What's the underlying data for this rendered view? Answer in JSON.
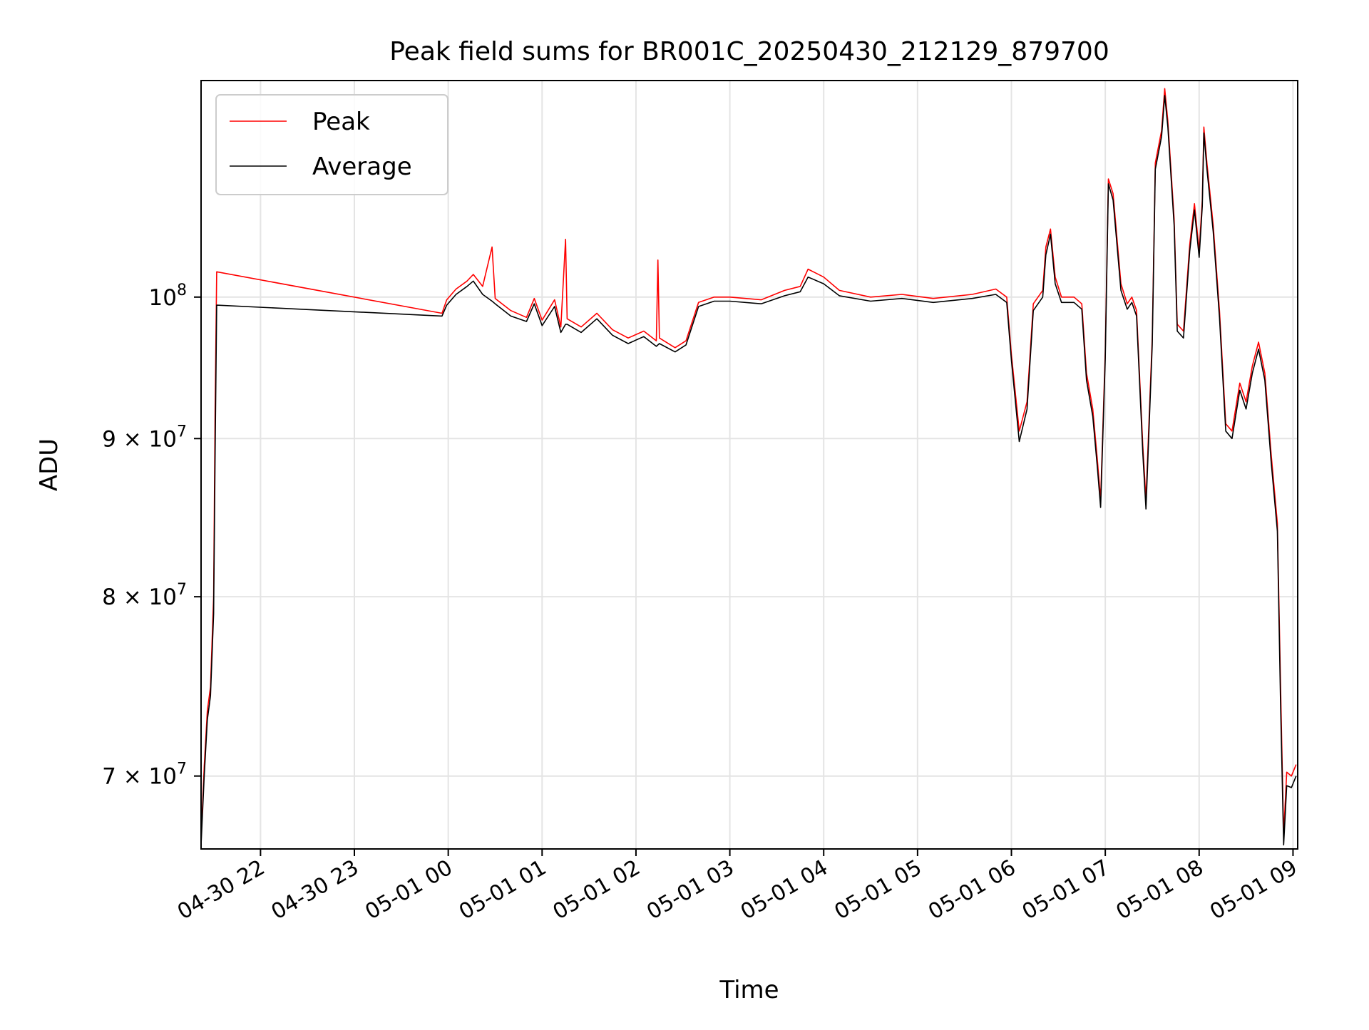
{
  "chart_data": {
    "type": "line",
    "title": "Peak field sums for BR001C_20250430_212129_879700",
    "xlabel": "Time",
    "ylabel": "ADU",
    "yscale": "log",
    "grid": true,
    "legend_placement": "top-left",
    "x_range": [
      "2025-04-30 21:22",
      "2025-05-01 09:03"
    ],
    "y_range": [
      66300000,
      117500000
    ],
    "x_ticks": [
      {
        "value": "2025-04-30 22:00",
        "label": "04-30 22"
      },
      {
        "value": "2025-04-30 23:00",
        "label": "04-30 23"
      },
      {
        "value": "2025-05-01 00:00",
        "label": "05-01 00"
      },
      {
        "value": "2025-05-01 01:00",
        "label": "05-01 01"
      },
      {
        "value": "2025-05-01 02:00",
        "label": "05-01 02"
      },
      {
        "value": "2025-05-01 03:00",
        "label": "05-01 03"
      },
      {
        "value": "2025-05-01 04:00",
        "label": "05-01 04"
      },
      {
        "value": "2025-05-01 05:00",
        "label": "05-01 05"
      },
      {
        "value": "2025-05-01 06:00",
        "label": "05-01 06"
      },
      {
        "value": "2025-05-01 07:00",
        "label": "05-01 07"
      },
      {
        "value": "2025-05-01 08:00",
        "label": "05-01 08"
      },
      {
        "value": "2025-05-01 09:00",
        "label": "05-01 09"
      }
    ],
    "y_ticks": [
      {
        "value": 70000000,
        "mant": "7",
        "exp": "7"
      },
      {
        "value": 80000000,
        "mant": "8",
        "exp": "7"
      },
      {
        "value": 90000000,
        "mant": "9",
        "exp": "7"
      },
      {
        "value": 100000000,
        "mant": "",
        "exp": "8"
      }
    ],
    "series": [
      {
        "name": "Peak",
        "color": "#ff0000",
        "points": [
          [
            "2025-04-30 21:22",
            66800000
          ],
          [
            "2025-04-30 21:24",
            70500000
          ],
          [
            "2025-04-30 21:26",
            73500000
          ],
          [
            "2025-04-30 21:28",
            74800000
          ],
          [
            "2025-04-30 21:30",
            80000000
          ],
          [
            "2025-04-30 21:31",
            92000000
          ],
          [
            "2025-04-30 21:32",
            101900000
          ],
          [
            "2025-04-30 23:56",
            98800000
          ],
          [
            "2025-04-30 23:59",
            99800000
          ],
          [
            "2025-05-01 00:05",
            100600000
          ],
          [
            "2025-05-01 00:12",
            101200000
          ],
          [
            "2025-05-01 00:16",
            101700000
          ],
          [
            "2025-05-01 00:22",
            100800000
          ],
          [
            "2025-05-01 00:28",
            103800000
          ],
          [
            "2025-05-01 00:30",
            99900000
          ],
          [
            "2025-05-01 00:40",
            99000000
          ],
          [
            "2025-05-01 00:50",
            98500000
          ],
          [
            "2025-05-01 00:55",
            99900000
          ],
          [
            "2025-05-01 01:00",
            98300000
          ],
          [
            "2025-05-01 01:08",
            99800000
          ],
          [
            "2025-05-01 01:12",
            97800000
          ],
          [
            "2025-05-01 01:15",
            104400000
          ],
          [
            "2025-05-01 01:16",
            98400000
          ],
          [
            "2025-05-01 01:25",
            97800000
          ],
          [
            "2025-05-01 01:35",
            98800000
          ],
          [
            "2025-05-01 01:45",
            97600000
          ],
          [
            "2025-05-01 01:55",
            97000000
          ],
          [
            "2025-05-01 02:05",
            97500000
          ],
          [
            "2025-05-01 02:13",
            96800000
          ],
          [
            "2025-05-01 02:14",
            102800000
          ],
          [
            "2025-05-01 02:15",
            97000000
          ],
          [
            "2025-05-01 02:25",
            96300000
          ],
          [
            "2025-05-01 02:32",
            96800000
          ],
          [
            "2025-05-01 02:40",
            99600000
          ],
          [
            "2025-05-01 02:50",
            100000000
          ],
          [
            "2025-05-01 03:00",
            100000000
          ],
          [
            "2025-05-01 03:20",
            99800000
          ],
          [
            "2025-05-01 03:35",
            100500000
          ],
          [
            "2025-05-01 03:45",
            100800000
          ],
          [
            "2025-05-01 03:50",
            102100000
          ],
          [
            "2025-05-01 04:00",
            101500000
          ],
          [
            "2025-05-01 04:10",
            100500000
          ],
          [
            "2025-05-01 04:30",
            100000000
          ],
          [
            "2025-05-01 04:50",
            100200000
          ],
          [
            "2025-05-01 05:10",
            99900000
          ],
          [
            "2025-05-01 05:35",
            100200000
          ],
          [
            "2025-05-01 05:50",
            100600000
          ],
          [
            "2025-05-01 05:57",
            100000000
          ],
          [
            "2025-05-01 06:00",
            95800000
          ],
          [
            "2025-05-01 06:05",
            90500000
          ],
          [
            "2025-05-01 06:10",
            92500000
          ],
          [
            "2025-05-01 06:14",
            99500000
          ],
          [
            "2025-05-01 06:20",
            100500000
          ],
          [
            "2025-05-01 06:22",
            103800000
          ],
          [
            "2025-05-01 06:25",
            105200000
          ],
          [
            "2025-05-01 06:28",
            101500000
          ],
          [
            "2025-05-01 06:32",
            100000000
          ],
          [
            "2025-05-01 06:40",
            100000000
          ],
          [
            "2025-05-01 06:45",
            99500000
          ],
          [
            "2025-05-01 06:48",
            94500000
          ],
          [
            "2025-05-01 06:52",
            92000000
          ],
          [
            "2025-05-01 06:55",
            88500000
          ],
          [
            "2025-05-01 06:57",
            86000000
          ],
          [
            "2025-05-01 07:00",
            96000000
          ],
          [
            "2025-05-01 07:02",
            109200000
          ],
          [
            "2025-05-01 07:05",
            108000000
          ],
          [
            "2025-05-01 07:10",
            101000000
          ],
          [
            "2025-05-01 07:14",
            99500000
          ],
          [
            "2025-05-01 07:17",
            100000000
          ],
          [
            "2025-05-01 07:20",
            99000000
          ],
          [
            "2025-05-01 07:24",
            89500000
          ],
          [
            "2025-05-01 07:26",
            86000000
          ],
          [
            "2025-05-01 07:30",
            97000000
          ],
          [
            "2025-05-01 07:32",
            110500000
          ],
          [
            "2025-05-01 07:36",
            113200000
          ],
          [
            "2025-05-01 07:38",
            116800000
          ],
          [
            "2025-05-01 07:40",
            114000000
          ],
          [
            "2025-05-01 07:44",
            106000000
          ],
          [
            "2025-05-01 07:46",
            98000000
          ],
          [
            "2025-05-01 07:50",
            97500000
          ],
          [
            "2025-05-01 07:54",
            104000000
          ],
          [
            "2025-05-01 07:57",
            107200000
          ],
          [
            "2025-05-01 08:00",
            103500000
          ],
          [
            "2025-05-01 08:02",
            107500000
          ],
          [
            "2025-05-01 08:03",
            113500000
          ],
          [
            "2025-05-01 08:05",
            110500000
          ],
          [
            "2025-05-01 08:09",
            105500000
          ],
          [
            "2025-05-01 08:13",
            99000000
          ],
          [
            "2025-05-01 08:17",
            91000000
          ],
          [
            "2025-05-01 08:21",
            90500000
          ],
          [
            "2025-05-01 08:26",
            93800000
          ],
          [
            "2025-05-01 08:30",
            92500000
          ],
          [
            "2025-05-01 08:34",
            95000000
          ],
          [
            "2025-05-01 08:38",
            96700000
          ],
          [
            "2025-05-01 08:42",
            94500000
          ],
          [
            "2025-05-01 08:46",
            89000000
          ],
          [
            "2025-05-01 08:50",
            84500000
          ],
          [
            "2025-05-01 08:52",
            75000000
          ],
          [
            "2025-05-01 08:54",
            67000000
          ],
          [
            "2025-05-01 08:56",
            70200000
          ],
          [
            "2025-05-01 08:59",
            70000000
          ],
          [
            "2025-05-01 09:02",
            70600000
          ]
        ]
      },
      {
        "name": "Average",
        "color": "#000000",
        "points": [
          [
            "2025-04-30 21:22",
            66500000
          ],
          [
            "2025-04-30 21:24",
            70000000
          ],
          [
            "2025-04-30 21:26",
            73000000
          ],
          [
            "2025-04-30 21:28",
            74300000
          ],
          [
            "2025-04-30 21:30",
            79000000
          ],
          [
            "2025-04-30 21:31",
            89000000
          ],
          [
            "2025-04-30 21:32",
            99400000
          ],
          [
            "2025-04-30 23:56",
            98600000
          ],
          [
            "2025-04-30 23:59",
            99400000
          ],
          [
            "2025-05-01 00:05",
            100200000
          ],
          [
            "2025-05-01 00:12",
            100800000
          ],
          [
            "2025-05-01 00:16",
            101200000
          ],
          [
            "2025-05-01 00:22",
            100200000
          ],
          [
            "2025-05-01 00:28",
            99700000
          ],
          [
            "2025-05-01 00:30",
            99500000
          ],
          [
            "2025-05-01 00:40",
            98600000
          ],
          [
            "2025-05-01 00:50",
            98200000
          ],
          [
            "2025-05-01 00:55",
            99500000
          ],
          [
            "2025-05-01 01:00",
            97900000
          ],
          [
            "2025-05-01 01:08",
            99300000
          ],
          [
            "2025-05-01 01:12",
            97400000
          ],
          [
            "2025-05-01 01:15",
            98000000
          ],
          [
            "2025-05-01 01:16",
            98000000
          ],
          [
            "2025-05-01 01:25",
            97400000
          ],
          [
            "2025-05-01 01:35",
            98400000
          ],
          [
            "2025-05-01 01:45",
            97200000
          ],
          [
            "2025-05-01 01:55",
            96600000
          ],
          [
            "2025-05-01 02:05",
            97100000
          ],
          [
            "2025-05-01 02:13",
            96400000
          ],
          [
            "2025-05-01 02:14",
            96500000
          ],
          [
            "2025-05-01 02:15",
            96600000
          ],
          [
            "2025-05-01 02:25",
            96000000
          ],
          [
            "2025-05-01 02:32",
            96500000
          ],
          [
            "2025-05-01 02:40",
            99300000
          ],
          [
            "2025-05-01 02:50",
            99700000
          ],
          [
            "2025-05-01 03:00",
            99700000
          ],
          [
            "2025-05-01 03:20",
            99500000
          ],
          [
            "2025-05-01 03:35",
            100100000
          ],
          [
            "2025-05-01 03:45",
            100400000
          ],
          [
            "2025-05-01 03:50",
            101500000
          ],
          [
            "2025-05-01 04:00",
            101000000
          ],
          [
            "2025-05-01 04:10",
            100100000
          ],
          [
            "2025-05-01 04:30",
            99700000
          ],
          [
            "2025-05-01 04:50",
            99900000
          ],
          [
            "2025-05-01 05:10",
            99600000
          ],
          [
            "2025-05-01 05:35",
            99900000
          ],
          [
            "2025-05-01 05:50",
            100200000
          ],
          [
            "2025-05-01 05:57",
            99600000
          ],
          [
            "2025-05-01 06:00",
            95400000
          ],
          [
            "2025-05-01 06:05",
            89800000
          ],
          [
            "2025-05-01 06:10",
            92000000
          ],
          [
            "2025-05-01 06:14",
            99000000
          ],
          [
            "2025-05-01 06:20",
            100000000
          ],
          [
            "2025-05-01 06:22",
            103200000
          ],
          [
            "2025-05-01 06:25",
            104800000
          ],
          [
            "2025-05-01 06:28",
            101000000
          ],
          [
            "2025-05-01 06:32",
            99600000
          ],
          [
            "2025-05-01 06:40",
            99600000
          ],
          [
            "2025-05-01 06:45",
            99100000
          ],
          [
            "2025-05-01 06:48",
            94000000
          ],
          [
            "2025-05-01 06:52",
            91500000
          ],
          [
            "2025-05-01 06:55",
            88000000
          ],
          [
            "2025-05-01 06:57",
            85500000
          ],
          [
            "2025-05-01 07:00",
            95500000
          ],
          [
            "2025-05-01 07:02",
            108800000
          ],
          [
            "2025-05-01 07:05",
            107500000
          ],
          [
            "2025-05-01 07:10",
            100500000
          ],
          [
            "2025-05-01 07:14",
            99100000
          ],
          [
            "2025-05-01 07:17",
            99600000
          ],
          [
            "2025-05-01 07:20",
            98600000
          ],
          [
            "2025-05-01 07:24",
            89000000
          ],
          [
            "2025-05-01 07:26",
            85400000
          ],
          [
            "2025-05-01 07:30",
            96500000
          ],
          [
            "2025-05-01 07:32",
            110000000
          ],
          [
            "2025-05-01 07:36",
            112700000
          ],
          [
            "2025-05-01 07:38",
            116200000
          ],
          [
            "2025-05-01 07:40",
            113500000
          ],
          [
            "2025-05-01 07:44",
            105500000
          ],
          [
            "2025-05-01 07:46",
            97500000
          ],
          [
            "2025-05-01 07:50",
            97000000
          ],
          [
            "2025-05-01 07:54",
            103500000
          ],
          [
            "2025-05-01 07:57",
            106700000
          ],
          [
            "2025-05-01 08:00",
            103000000
          ],
          [
            "2025-05-01 08:02",
            107000000
          ],
          [
            "2025-05-01 08:03",
            113000000
          ],
          [
            "2025-05-01 08:05",
            110000000
          ],
          [
            "2025-05-01 08:09",
            105000000
          ],
          [
            "2025-05-01 08:13",
            98500000
          ],
          [
            "2025-05-01 08:17",
            90500000
          ],
          [
            "2025-05-01 08:21",
            90000000
          ],
          [
            "2025-05-01 08:26",
            93300000
          ],
          [
            "2025-05-01 08:30",
            92000000
          ],
          [
            "2025-05-01 08:34",
            94500000
          ],
          [
            "2025-05-01 08:38",
            96200000
          ],
          [
            "2025-05-01 08:42",
            94000000
          ],
          [
            "2025-05-01 08:46",
            88500000
          ],
          [
            "2025-05-01 08:50",
            84000000
          ],
          [
            "2025-05-01 08:52",
            74000000
          ],
          [
            "2025-05-01 08:54",
            66500000
          ],
          [
            "2025-05-01 08:56",
            69500000
          ],
          [
            "2025-05-01 08:59",
            69400000
          ],
          [
            "2025-05-01 09:02",
            70000000
          ]
        ]
      }
    ]
  }
}
